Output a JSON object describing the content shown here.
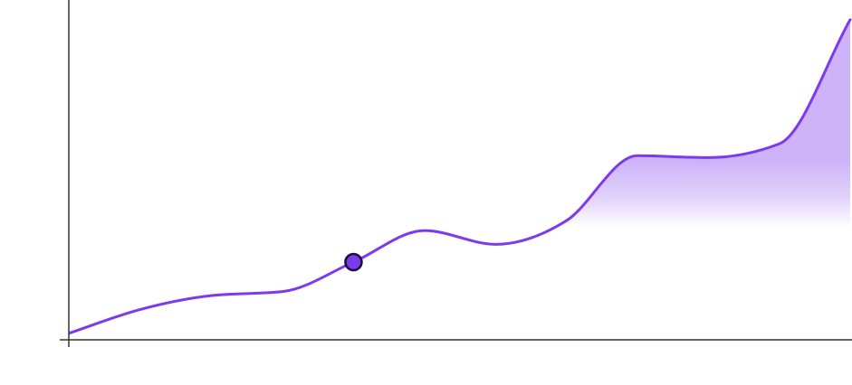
{
  "colors": {
    "line": "#7c3aed",
    "area_top": "#c4a5f7",
    "axis": "#333333",
    "marker_fill": "#7c3aed",
    "marker_stroke": "#1a1033"
  },
  "chart_data": {
    "type": "area",
    "title": "",
    "xlabel": "",
    "ylabel": "",
    "x": [
      0,
      1,
      2,
      3,
      4,
      5,
      6,
      7,
      8,
      9,
      10,
      11
    ],
    "series": [
      {
        "values": [
          1,
          13,
          20,
          22,
          37,
          53,
          46,
          58,
          91,
          90,
          97,
          160
        ],
        "smooth": true,
        "area": true
      }
    ],
    "xlim": [
      0,
      11
    ],
    "ylim": [
      -2,
      170
    ],
    "highlight": {
      "index": 4
    },
    "grid": false,
    "legend": "none"
  }
}
